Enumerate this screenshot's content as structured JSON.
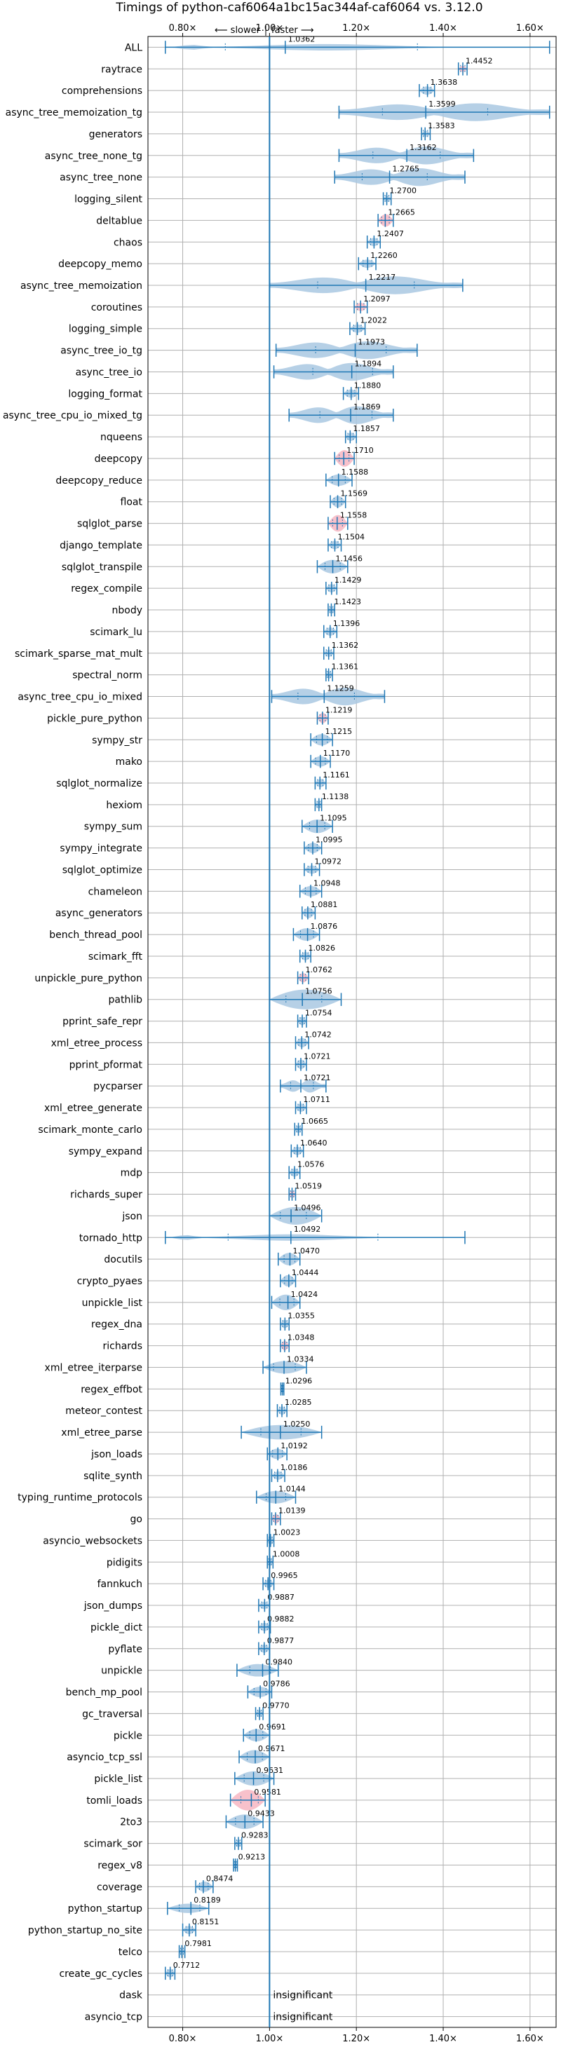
{
  "chart_data": {
    "type": "violin",
    "title": "Timings of python-caf6064a1bc15ac344af-caf6064 vs. 3.12.0",
    "direction_slower": "⟵ slower",
    "direction_faster": "faster ⟶",
    "x_ticks": [
      {
        "value": 0.8,
        "label": "0.80×"
      },
      {
        "value": 1.0,
        "label": "1.00×"
      },
      {
        "value": 1.2,
        "label": "1.20×"
      },
      {
        "value": 1.4,
        "label": "1.40×"
      },
      {
        "value": 1.6,
        "label": "1.60×"
      }
    ],
    "xlim": [
      0.72,
      1.66
    ],
    "grid": true,
    "colors": {
      "normal": "#1f77b4",
      "body": "#a9c8e2",
      "significant_body": "#f7b6c2",
      "axis": "#000000"
    },
    "series": [
      {
        "name": "ALL",
        "value": 1.0362,
        "min": 0.76,
        "max": 1.645,
        "width": 0.9,
        "shape": "all"
      },
      {
        "name": "raytrace",
        "value": 1.4452,
        "min": 1.435,
        "max": 1.455,
        "width": 0.3,
        "sig": true
      },
      {
        "name": "comprehensions",
        "value": 1.3638,
        "min": 1.345,
        "max": 1.38,
        "width": 0.4
      },
      {
        "name": "async_tree_memoization_tg",
        "value": 1.3599,
        "min": 1.16,
        "max": 1.645,
        "width": 0.95,
        "shape": "multi"
      },
      {
        "name": "generators",
        "value": 1.3583,
        "min": 1.35,
        "max": 1.37,
        "width": 0.3
      },
      {
        "name": "async_tree_none_tg",
        "value": 1.3162,
        "min": 1.16,
        "max": 1.47,
        "width": 0.95,
        "shape": "multi"
      },
      {
        "name": "async_tree_none",
        "value": 1.2765,
        "min": 1.15,
        "max": 1.45,
        "width": 0.95,
        "shape": "multi"
      },
      {
        "name": "logging_silent",
        "value": 1.27,
        "min": 1.262,
        "max": 1.28,
        "width": 0.3
      },
      {
        "name": "deltablue",
        "value": 1.2665,
        "min": 1.25,
        "max": 1.285,
        "width": 0.6,
        "sig": true
      },
      {
        "name": "chaos",
        "value": 1.2407,
        "min": 1.225,
        "max": 1.255,
        "width": 0.4
      },
      {
        "name": "deepcopy_memo",
        "value": 1.226,
        "min": 1.205,
        "max": 1.245,
        "width": 0.4
      },
      {
        "name": "async_tree_memoization",
        "value": 1.2217,
        "min": 1.0,
        "max": 1.445,
        "width": 0.95,
        "shape": "multi"
      },
      {
        "name": "coroutines",
        "value": 1.2097,
        "min": 1.195,
        "max": 1.225,
        "width": 0.4,
        "sig": true
      },
      {
        "name": "logging_simple",
        "value": 1.2022,
        "min": 1.185,
        "max": 1.22,
        "width": 0.4
      },
      {
        "name": "async_tree_io_tg",
        "value": 1.1973,
        "min": 1.015,
        "max": 1.34,
        "width": 0.95,
        "shape": "multi"
      },
      {
        "name": "async_tree_io",
        "value": 1.1894,
        "min": 1.01,
        "max": 1.285,
        "width": 0.95,
        "shape": "multi"
      },
      {
        "name": "logging_format",
        "value": 1.188,
        "min": 1.17,
        "max": 1.205,
        "width": 0.4
      },
      {
        "name": "async_tree_cpu_io_mixed_tg",
        "value": 1.1869,
        "min": 1.045,
        "max": 1.285,
        "width": 0.95,
        "shape": "multi"
      },
      {
        "name": "nqueens",
        "value": 1.1857,
        "min": 1.175,
        "max": 1.2,
        "width": 0.4
      },
      {
        "name": "deepcopy",
        "value": 1.171,
        "min": 1.15,
        "max": 1.195,
        "width": 0.8,
        "sig": true
      },
      {
        "name": "deepcopy_reduce",
        "value": 1.1588,
        "min": 1.13,
        "max": 1.19,
        "width": 0.55
      },
      {
        "name": "float",
        "value": 1.1569,
        "min": 1.14,
        "max": 1.175,
        "width": 0.55
      },
      {
        "name": "sqlglot_parse",
        "value": 1.1558,
        "min": 1.135,
        "max": 1.18,
        "width": 0.8,
        "sig": true
      },
      {
        "name": "django_template",
        "value": 1.1504,
        "min": 1.135,
        "max": 1.165,
        "width": 0.4
      },
      {
        "name": "sqlglot_transpile",
        "value": 1.1456,
        "min": 1.11,
        "max": 1.18,
        "width": 0.65
      },
      {
        "name": "regex_compile",
        "value": 1.1429,
        "min": 1.13,
        "max": 1.155,
        "width": 0.4
      },
      {
        "name": "nbody",
        "value": 1.1423,
        "min": 1.135,
        "max": 1.15,
        "width": 0.35
      },
      {
        "name": "scimark_lu",
        "value": 1.1396,
        "min": 1.125,
        "max": 1.155,
        "width": 0.4
      },
      {
        "name": "scimark_sparse_mat_mult",
        "value": 1.1362,
        "min": 1.125,
        "max": 1.148,
        "width": 0.35
      },
      {
        "name": "spectral_norm",
        "value": 1.1361,
        "min": 1.13,
        "max": 1.145,
        "width": 0.35
      },
      {
        "name": "async_tree_cpu_io_mixed",
        "value": 1.1259,
        "min": 1.005,
        "max": 1.265,
        "width": 0.95,
        "shape": "multi"
      },
      {
        "name": "pickle_pure_python",
        "value": 1.1219,
        "min": 1.11,
        "max": 1.135,
        "width": 0.5,
        "sig": true
      },
      {
        "name": "sympy_str",
        "value": 1.1215,
        "min": 1.095,
        "max": 1.145,
        "width": 0.55
      },
      {
        "name": "mako",
        "value": 1.117,
        "min": 1.095,
        "max": 1.14,
        "width": 0.5
      },
      {
        "name": "sqlglot_normalize",
        "value": 1.1161,
        "min": 1.105,
        "max": 1.13,
        "width": 0.4
      },
      {
        "name": "hexiom",
        "value": 1.1138,
        "min": 1.105,
        "max": 1.12,
        "width": 0.35
      },
      {
        "name": "sympy_sum",
        "value": 1.1095,
        "min": 1.075,
        "max": 1.145,
        "width": 0.65
      },
      {
        "name": "sympy_integrate",
        "value": 1.0995,
        "min": 1.08,
        "max": 1.12,
        "width": 0.5
      },
      {
        "name": "sqlglot_optimize",
        "value": 1.0972,
        "min": 1.08,
        "max": 1.115,
        "width": 0.4
      },
      {
        "name": "chameleon",
        "value": 1.0948,
        "min": 1.07,
        "max": 1.12,
        "width": 0.5
      },
      {
        "name": "async_generators",
        "value": 1.0881,
        "min": 1.075,
        "max": 1.105,
        "width": 0.5
      },
      {
        "name": "bench_thread_pool",
        "value": 1.0876,
        "min": 1.055,
        "max": 1.115,
        "width": 0.6
      },
      {
        "name": "scimark_fft",
        "value": 1.0826,
        "min": 1.07,
        "max": 1.095,
        "width": 0.4
      },
      {
        "name": "unpickle_pure_python",
        "value": 1.0762,
        "min": 1.065,
        "max": 1.09,
        "width": 0.45,
        "sig": true
      },
      {
        "name": "pathlib",
        "value": 1.0756,
        "min": 1.0,
        "max": 1.165,
        "width": 0.95
      },
      {
        "name": "pprint_safe_repr",
        "value": 1.0754,
        "min": 1.065,
        "max": 1.085,
        "width": 0.4
      },
      {
        "name": "xml_etree_process",
        "value": 1.0742,
        "min": 1.06,
        "max": 1.09,
        "width": 0.45
      },
      {
        "name": "pprint_pformat",
        "value": 1.0721,
        "min": 1.06,
        "max": 1.085,
        "width": 0.45
      },
      {
        "name": "pycparser",
        "value": 1.0721,
        "min": 1.025,
        "max": 1.13,
        "width": 0.7,
        "shape": "multi"
      },
      {
        "name": "xml_etree_generate",
        "value": 1.0711,
        "min": 1.06,
        "max": 1.085,
        "width": 0.4
      },
      {
        "name": "scimark_monte_carlo",
        "value": 1.0665,
        "min": 1.058,
        "max": 1.075,
        "width": 0.35
      },
      {
        "name": "sympy_expand",
        "value": 1.064,
        "min": 1.05,
        "max": 1.078,
        "width": 0.4
      },
      {
        "name": "mdp",
        "value": 1.0576,
        "min": 1.045,
        "max": 1.07,
        "width": 0.4
      },
      {
        "name": "richards_super",
        "value": 1.0519,
        "min": 1.045,
        "max": 1.06,
        "width": 0.35,
        "sig": true
      },
      {
        "name": "json",
        "value": 1.0496,
        "min": 1.0,
        "max": 1.12,
        "width": 0.85
      },
      {
        "name": "tornado_http",
        "value": 1.0492,
        "min": 0.76,
        "max": 1.45,
        "width": 0.9,
        "shape": "all"
      },
      {
        "name": "docutils",
        "value": 1.047,
        "min": 1.02,
        "max": 1.07,
        "width": 0.6
      },
      {
        "name": "crypto_pyaes",
        "value": 1.0444,
        "min": 1.025,
        "max": 1.06,
        "width": 0.55
      },
      {
        "name": "unpickle_list",
        "value": 1.0424,
        "min": 1.005,
        "max": 1.07,
        "width": 0.75
      },
      {
        "name": "regex_dna",
        "value": 1.0355,
        "min": 1.025,
        "max": 1.045,
        "width": 0.4
      },
      {
        "name": "richards",
        "value": 1.0348,
        "min": 1.025,
        "max": 1.045,
        "width": 0.45,
        "sig": true
      },
      {
        "name": "xml_etree_iterparse",
        "value": 1.0334,
        "min": 0.985,
        "max": 1.085,
        "width": 0.6
      },
      {
        "name": "regex_effbot",
        "value": 1.0296,
        "min": 1.026,
        "max": 1.033,
        "width": 0.3
      },
      {
        "name": "meteor_contest",
        "value": 1.0285,
        "min": 1.018,
        "max": 1.04,
        "width": 0.4
      },
      {
        "name": "xml_etree_parse",
        "value": 1.025,
        "min": 0.935,
        "max": 1.12,
        "width": 0.7
      },
      {
        "name": "json_loads",
        "value": 1.0192,
        "min": 0.995,
        "max": 1.04,
        "width": 0.5
      },
      {
        "name": "sqlite_synth",
        "value": 1.0186,
        "min": 1.005,
        "max": 1.035,
        "width": 0.4
      },
      {
        "name": "typing_runtime_protocols",
        "value": 1.0144,
        "min": 0.97,
        "max": 1.06,
        "width": 0.6
      },
      {
        "name": "go",
        "value": 1.0139,
        "min": 1.005,
        "max": 1.025,
        "width": 0.45,
        "sig": true
      },
      {
        "name": "asyncio_websockets",
        "value": 1.0023,
        "min": 0.995,
        "max": 1.01,
        "width": 0.4
      },
      {
        "name": "pidigits",
        "value": 1.0008,
        "min": 0.995,
        "max": 1.008,
        "width": 0.35
      },
      {
        "name": "fannkuch",
        "value": 0.9965,
        "min": 0.985,
        "max": 1.01,
        "width": 0.4
      },
      {
        "name": "json_dumps",
        "value": 0.9887,
        "min": 0.975,
        "max": 1.0,
        "width": 0.35
      },
      {
        "name": "pickle_dict",
        "value": 0.9882,
        "min": 0.975,
        "max": 1.002,
        "width": 0.4
      },
      {
        "name": "pyflate",
        "value": 0.9877,
        "min": 0.975,
        "max": 1.0,
        "width": 0.4
      },
      {
        "name": "unpickle",
        "value": 0.984,
        "min": 0.925,
        "max": 1.02,
        "width": 0.6
      },
      {
        "name": "bench_mp_pool",
        "value": 0.9786,
        "min": 0.95,
        "max": 1.005,
        "width": 0.5
      },
      {
        "name": "gc_traversal",
        "value": 0.977,
        "min": 0.968,
        "max": 0.985,
        "width": 0.35
      },
      {
        "name": "pickle",
        "value": 0.9691,
        "min": 0.94,
        "max": 1.0,
        "width": 0.6
      },
      {
        "name": "asyncio_tcp_ssl",
        "value": 0.9671,
        "min": 0.93,
        "max": 1.0,
        "width": 0.65
      },
      {
        "name": "pickle_list",
        "value": 0.9631,
        "min": 0.92,
        "max": 1.01,
        "width": 0.7
      },
      {
        "name": "tomli_loads",
        "value": 0.9581,
        "min": 0.91,
        "max": 0.99,
        "width": 1.0,
        "sig": true
      },
      {
        "name": "2to3",
        "value": 0.9433,
        "min": 0.9,
        "max": 0.985,
        "width": 0.7
      },
      {
        "name": "scimark_sor",
        "value": 0.9283,
        "min": 0.92,
        "max": 0.936,
        "width": 0.35
      },
      {
        "name": "regex_v8",
        "value": 0.9213,
        "min": 0.917,
        "max": 0.926,
        "width": 0.3
      },
      {
        "name": "coverage",
        "value": 0.8474,
        "min": 0.83,
        "max": 0.87,
        "width": 0.5
      },
      {
        "name": "python_startup",
        "value": 0.8189,
        "min": 0.765,
        "max": 0.86,
        "width": 0.45
      },
      {
        "name": "python_startup_no_site",
        "value": 0.8151,
        "min": 0.8,
        "max": 0.83,
        "width": 0.4
      },
      {
        "name": "telco",
        "value": 0.7981,
        "min": 0.792,
        "max": 0.805,
        "width": 0.35
      },
      {
        "name": "create_gc_cycles",
        "value": 0.7712,
        "min": 0.76,
        "max": 0.782,
        "width": 0.4
      },
      {
        "name": "dask",
        "insignificant": true
      },
      {
        "name": "asyncio_tcp",
        "insignificant": true
      }
    ],
    "insignificant_label": "insignificant"
  }
}
